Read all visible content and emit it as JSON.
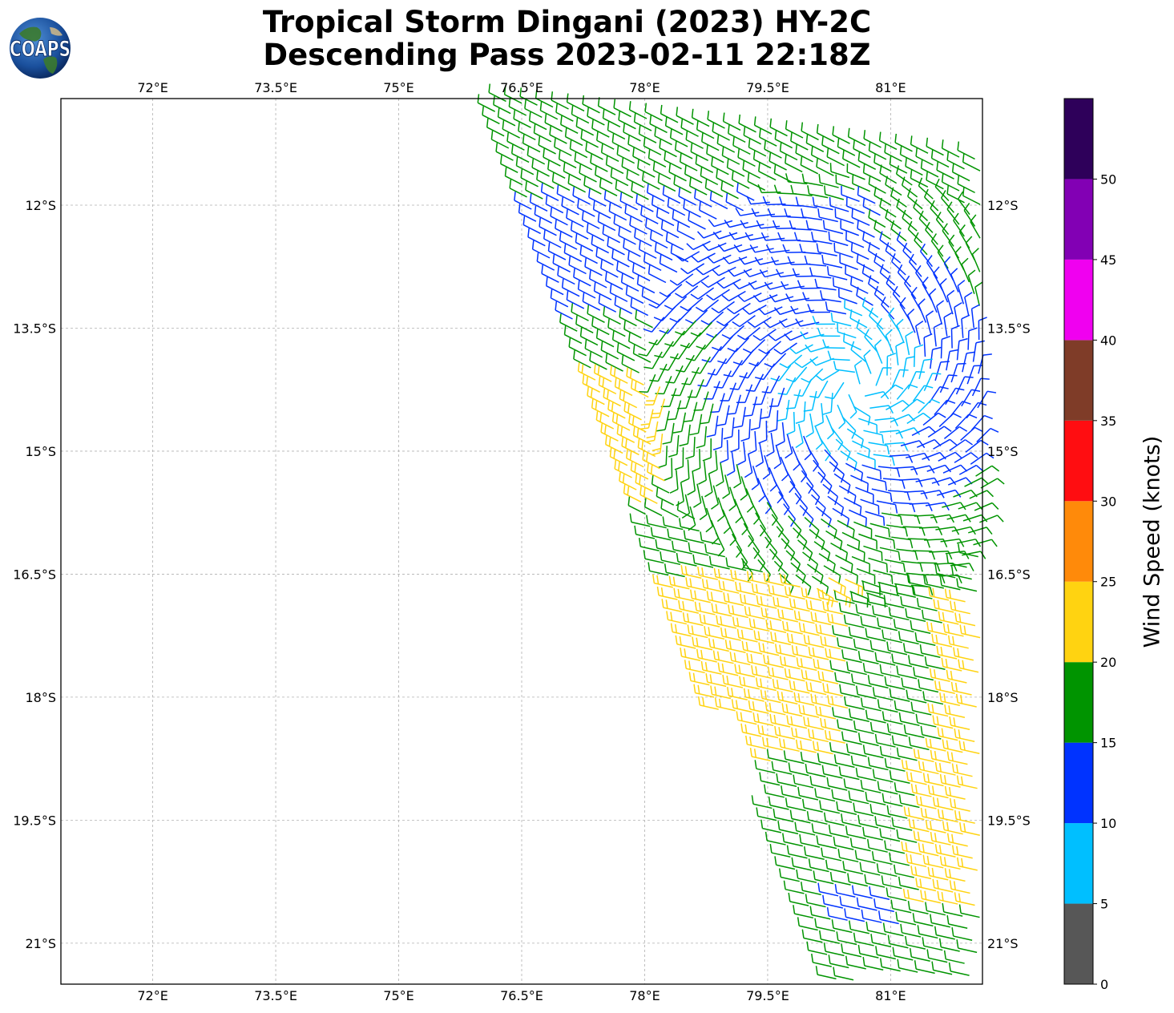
{
  "title": {
    "line1": "Tropical Storm Dingani (2023) HY-2C",
    "line2": "Descending Pass 2023-02-11 22:18Z"
  },
  "logo": {
    "text": "COAPS"
  },
  "map": {
    "x_ticks": [
      "72°E",
      "73.5°E",
      "75°E",
      "76.5°E",
      "78°E",
      "79.5°E",
      "81°E"
    ],
    "y_ticks": [
      "12°S",
      "13.5°S",
      "15°S",
      "16.5°S",
      "18°S",
      "19.5°S",
      "21°S"
    ],
    "lon_range": [
      70.88,
      82.12
    ],
    "lat_range": [
      -10.7,
      -21.5
    ],
    "gridlines": true,
    "gridline_color": "#b0b0b0",
    "barb_color_by_speed": true
  },
  "colorbar": {
    "label": "Wind Speed (knots)",
    "tick_labels": [
      "0",
      "5",
      "10",
      "15",
      "20",
      "25",
      "30",
      "35",
      "40",
      "45",
      "50"
    ],
    "bins": [
      {
        "from": 0,
        "to": 5,
        "color": "#575757"
      },
      {
        "from": 5,
        "to": 10,
        "color": "#00bfff"
      },
      {
        "from": 10,
        "to": 15,
        "color": "#0033ff"
      },
      {
        "from": 15,
        "to": 20,
        "color": "#009400"
      },
      {
        "from": 20,
        "to": 25,
        "color": "#ffd311"
      },
      {
        "from": 25,
        "to": 30,
        "color": "#ff8a0a"
      },
      {
        "from": 30,
        "to": 35,
        "color": "#ff0d11"
      },
      {
        "from": 35,
        "to": 40,
        "color": "#7f3c28"
      },
      {
        "from": 40,
        "to": 45,
        "color": "#f000f0"
      },
      {
        "from": 45,
        "to": 50,
        "color": "#8200b4"
      },
      {
        "from": 50,
        "to": 55,
        "color": "#2e005a"
      }
    ]
  }
}
